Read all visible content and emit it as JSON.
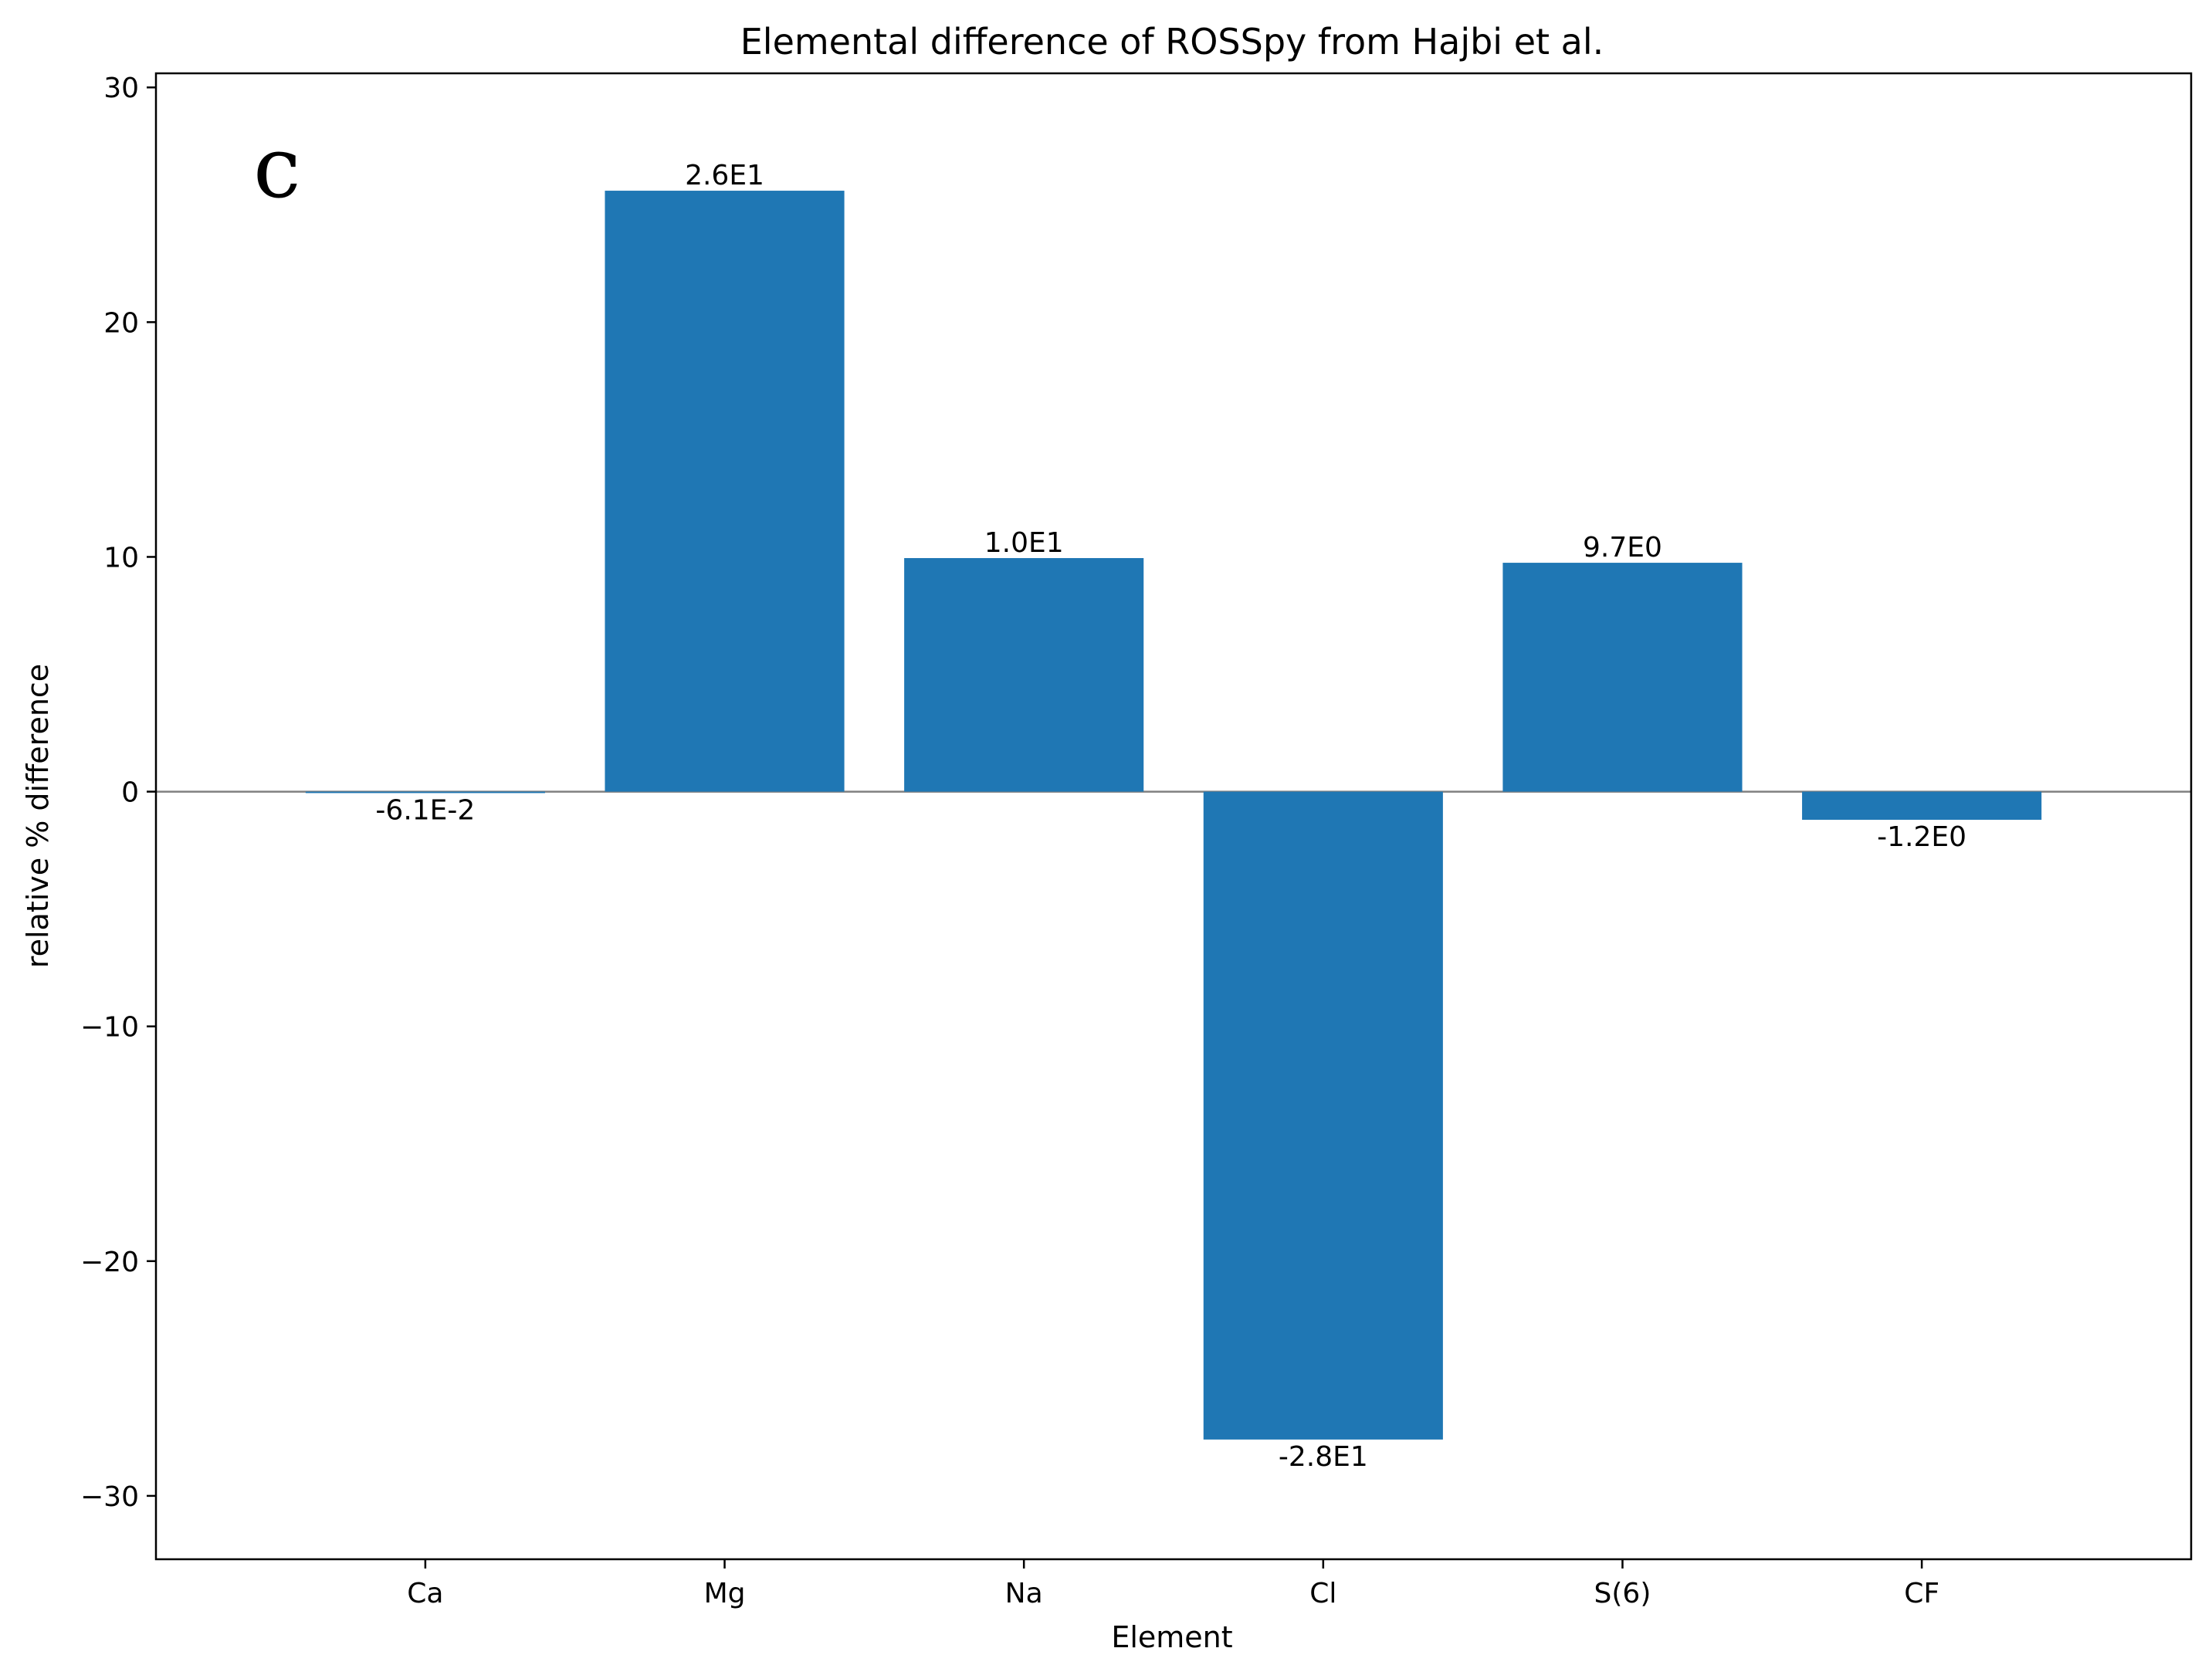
{
  "chart_data": {
    "type": "bar",
    "title": "Elemental difference of ROSSpy from Hajbi et al.",
    "panel_label": "c",
    "xlabel": "Element",
    "ylabel": "relative % difference",
    "categories": [
      "Ca",
      "Mg",
      "Na",
      "Cl",
      "S(6)",
      "CF"
    ],
    "values": [
      -0.061,
      25.6,
      9.95,
      -27.6,
      9.75,
      -1.2
    ],
    "bar_labels": [
      "-6.1E-2",
      "2.6E1",
      "1.0E1",
      "-2.8E1",
      "9.7E0",
      "-1.2E0"
    ],
    "ylim": [
      -32.7,
      30.6
    ],
    "yticks": [
      30,
      20,
      10,
      0,
      -10,
      -20,
      -30
    ],
    "ytick_labels": [
      "30",
      "20",
      "10",
      "0",
      "−10",
      "−20",
      "−30"
    ],
    "zero_line": true,
    "grid": false,
    "colors": {
      "bar": "#1f77b4",
      "zero_line": "#808080",
      "axes": "#000000"
    }
  }
}
